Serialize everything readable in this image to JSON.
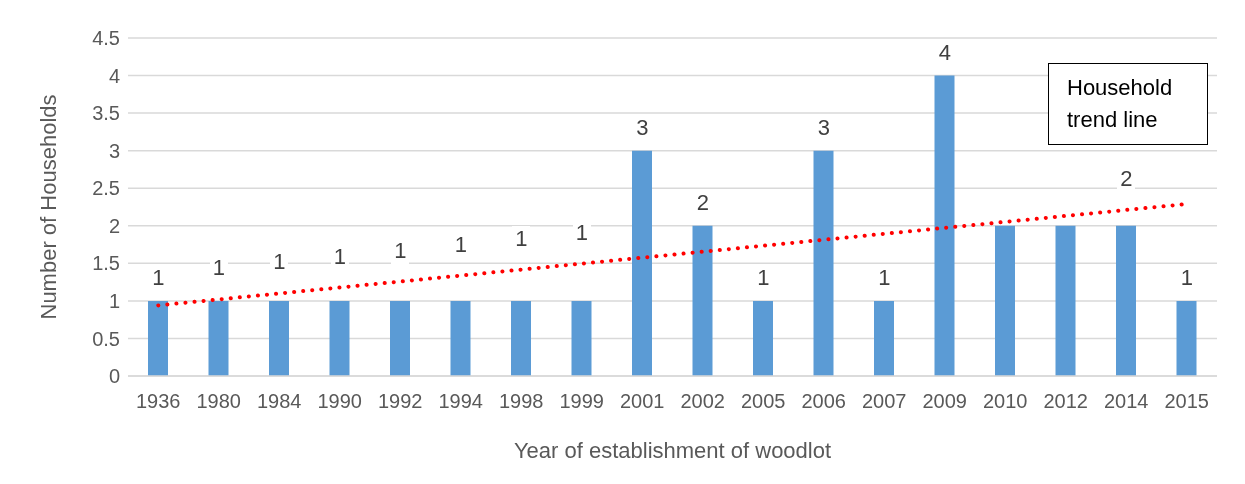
{
  "chart_data": {
    "type": "bar",
    "xlabel": "Year of establishment of woodlot",
    "ylabel": "Number of Households",
    "categories": [
      "1936",
      "1980",
      "1984",
      "1990",
      "1992",
      "1994",
      "1998",
      "1999",
      "2001",
      "2002",
      "2005",
      "2006",
      "2007",
      "2009",
      "2010",
      "2012",
      "2014",
      "2015"
    ],
    "series": [
      {
        "color": "#5b9bd5",
        "values": [
          1,
          1,
          1,
          1,
          1,
          1,
          1,
          1,
          3,
          2,
          1,
          3,
          1,
          4,
          2,
          2,
          2,
          1
        ],
        "value_labels": [
          "1",
          "1",
          "1",
          "1",
          "1",
          "1",
          "1",
          "1",
          "3",
          "2",
          "1",
          "3",
          "1",
          "4",
          null,
          null,
          "2",
          "1"
        ]
      },
      {
        "type": "line",
        "name": "Household trend line",
        "color": "#ff0000",
        "line_style": "dotted",
        "values": [
          0.94,
          null,
          null,
          null,
          null,
          null,
          null,
          null,
          null,
          null,
          null,
          null,
          null,
          null,
          null,
          null,
          null,
          2.29
        ]
      }
    ],
    "ylim": [
      0,
      4.5
    ],
    "yticks": [
      0,
      0.5,
      1,
      1.5,
      2,
      2.5,
      3,
      3.5,
      4,
      4.5
    ],
    "grid": "y"
  }
}
